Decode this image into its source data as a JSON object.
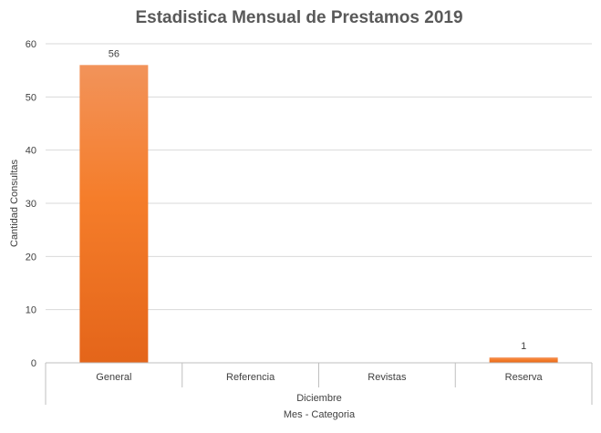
{
  "chart_data": {
    "type": "bar",
    "title": "Estadistica Mensual de Prestamos 2019",
    "xlabel": "Mes - Categoria",
    "ylabel": "Cantidad Consultas",
    "group_label": "Diciembre",
    "categories": [
      "General",
      "Referencia",
      "Revistas",
      "Reserva"
    ],
    "values": [
      56,
      0,
      0,
      1
    ],
    "data_labels": [
      "56",
      "",
      "",
      "1"
    ],
    "ylim": [
      0,
      60
    ],
    "yticks": [
      0,
      10,
      20,
      30,
      40,
      50,
      60
    ],
    "grid": true,
    "legend": "none",
    "colors": {
      "bar_top": "#f2935a",
      "bar_mid": "#f57d2a",
      "bar_bottom": "#e4651a",
      "grid": "#d9d9d9",
      "axis": "#bfbfbf",
      "tick_text": "#404040",
      "title_text": "#595959"
    }
  }
}
